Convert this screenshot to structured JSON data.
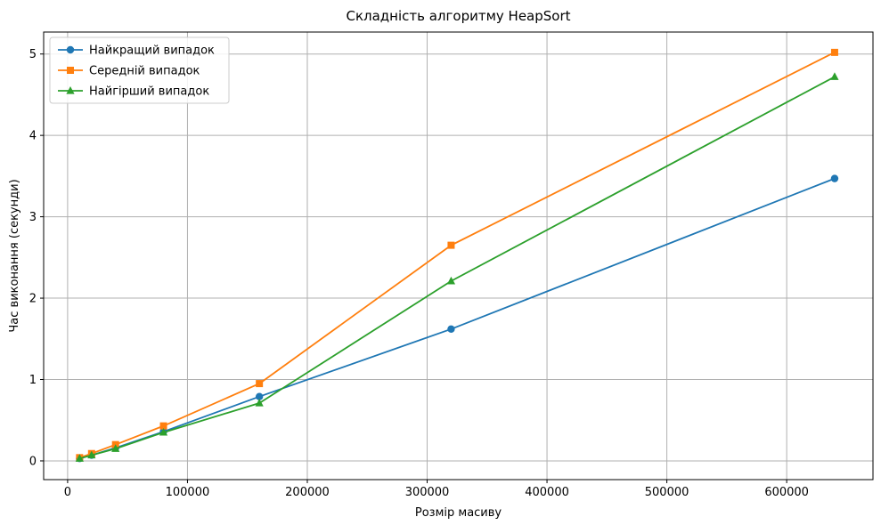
{
  "chart_data": {
    "type": "line",
    "title": "Складність алгоритму HeapSort",
    "xlabel": "Розмір масиву",
    "ylabel": "Час виконання (секунди)",
    "xlim": [
      -20000,
      672000
    ],
    "ylim": [
      -0.23,
      5.27
    ],
    "xticks": [
      0,
      100000,
      200000,
      300000,
      400000,
      500000,
      600000
    ],
    "yticks": [
      0,
      1,
      2,
      3,
      4,
      5
    ],
    "grid": true,
    "legend_position": "top-left",
    "x": [
      10000,
      20000,
      40000,
      80000,
      160000,
      320000,
      640000
    ],
    "series": [
      {
        "name": "Найкращий випадок",
        "color": "#1f77b4",
        "marker": "circle",
        "values": [
          0.03,
          0.07,
          0.16,
          0.36,
          0.79,
          1.62,
          3.47
        ]
      },
      {
        "name": "Середній випадок",
        "color": "#ff7f0e",
        "marker": "square",
        "values": [
          0.04,
          0.09,
          0.2,
          0.43,
          0.95,
          2.65,
          5.02
        ]
      },
      {
        "name": "Найгірший випадок",
        "color": "#2ca02c",
        "marker": "triangle",
        "values": [
          0.03,
          0.07,
          0.15,
          0.35,
          0.71,
          2.21,
          4.72
        ]
      }
    ]
  }
}
